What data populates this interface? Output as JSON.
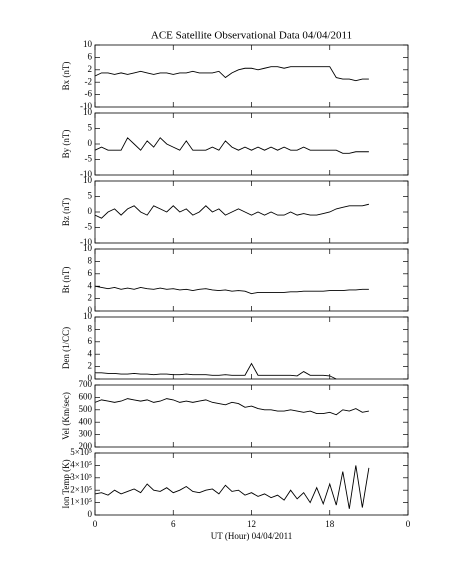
{
  "chart_data": [
    {
      "type": "line",
      "title": "ACE Satellite Observational Data   04/04/2011",
      "ylabel": "Bx (nT)",
      "color": "#000000",
      "x": [
        0,
        0.5,
        1,
        1.5,
        2,
        2.5,
        3,
        3.5,
        4,
        4.5,
        5,
        5.5,
        6,
        6.5,
        7,
        7.5,
        8,
        8.5,
        9,
        9.5,
        10,
        10.5,
        11,
        11.5,
        12,
        12.5,
        13,
        13.5,
        14,
        14.5,
        15,
        15.5,
        16,
        16.5,
        17,
        17.5,
        18,
        18.5,
        19,
        19.5,
        20,
        20.5,
        21
      ],
      "values": [
        0,
        1,
        1,
        0.5,
        1,
        0.5,
        1,
        1.5,
        1,
        0.5,
        1,
        1,
        0.5,
        1,
        1,
        1.5,
        1,
        1,
        1,
        1.5,
        -0.5,
        1,
        2,
        2.5,
        2.5,
        2,
        2.5,
        3,
        3,
        2.5,
        3,
        3,
        3,
        3,
        3,
        3,
        3,
        -0.5,
        -1,
        -1,
        -1.5,
        -1,
        -1
      ],
      "xlim": [
        0,
        24
      ],
      "xticks": [
        0,
        6,
        12,
        18,
        24
      ],
      "ylim": [
        -10,
        10
      ],
      "yticks": [
        -10,
        -6,
        -2,
        2,
        6,
        10
      ]
    },
    {
      "type": "line",
      "ylabel": "By (nT)",
      "color": "#000000",
      "x": [
        0,
        0.5,
        1,
        1.5,
        2,
        2.5,
        3,
        3.5,
        4,
        4.5,
        5,
        5.5,
        6,
        6.5,
        7,
        7.5,
        8,
        8.5,
        9,
        9.5,
        10,
        10.5,
        11,
        11.5,
        12,
        12.5,
        13,
        13.5,
        14,
        14.5,
        15,
        15.5,
        16,
        16.5,
        17,
        17.5,
        18,
        18.5,
        19,
        19.5,
        20,
        20.5,
        21
      ],
      "values": [
        -2,
        -1,
        -2,
        -2,
        -2,
        2,
        0,
        -2,
        1,
        -1,
        2,
        0,
        -1,
        -2,
        1,
        -2,
        -2,
        -2,
        -1,
        -2,
        1,
        -1,
        -2,
        -1,
        -2,
        -1,
        -2,
        -1,
        -2,
        -1,
        -2,
        -2,
        -1,
        -2,
        -2,
        -2,
        -2,
        -2,
        -3,
        -3,
        -2.5,
        -2.5,
        -2.5
      ],
      "xlim": [
        0,
        24
      ],
      "xticks": [
        0,
        6,
        12,
        18,
        24
      ],
      "ylim": [
        -10,
        10
      ],
      "yticks": [
        -10,
        -5,
        0,
        5,
        10
      ]
    },
    {
      "type": "line",
      "ylabel": "Bz (nT)",
      "color": "#000000",
      "x": [
        0,
        0.5,
        1,
        1.5,
        2,
        2.5,
        3,
        3.5,
        4,
        4.5,
        5,
        5.5,
        6,
        6.5,
        7,
        7.5,
        8,
        8.5,
        9,
        9.5,
        10,
        10.5,
        11,
        11.5,
        12,
        12.5,
        13,
        13.5,
        14,
        14.5,
        15,
        15.5,
        16,
        16.5,
        17,
        17.5,
        18,
        18.5,
        19,
        19.5,
        20,
        20.5,
        21
      ],
      "values": [
        -1,
        -2,
        0,
        1,
        -1,
        1,
        2,
        0,
        -1,
        2,
        1,
        0,
        2,
        0,
        1,
        -1,
        0,
        2,
        0,
        1,
        -1,
        0,
        1,
        0,
        -1,
        0,
        -1,
        0,
        -1,
        -1,
        0,
        -1,
        -0.5,
        -1,
        -1,
        -0.5,
        0,
        1,
        1.5,
        2,
        2,
        2,
        2.5
      ],
      "xlim": [
        0,
        24
      ],
      "xticks": [
        0,
        6,
        12,
        18,
        24
      ],
      "ylim": [
        -10,
        10
      ],
      "yticks": [
        -10,
        -5,
        0,
        5,
        10
      ]
    },
    {
      "type": "line",
      "ylabel": "Bt (nT)",
      "color": "#000000",
      "x": [
        0,
        0.5,
        1,
        1.5,
        2,
        2.5,
        3,
        3.5,
        4,
        4.5,
        5,
        5.5,
        6,
        6.5,
        7,
        7.5,
        8,
        8.5,
        9,
        9.5,
        10,
        10.5,
        11,
        11.5,
        12,
        12.5,
        13,
        13.5,
        14,
        14.5,
        15,
        15.5,
        16,
        16.5,
        17,
        17.5,
        18,
        18.5,
        19,
        19.5,
        20,
        20.5,
        21
      ],
      "values": [
        4,
        3.8,
        3.6,
        3.8,
        3.5,
        3.7,
        3.5,
        3.8,
        3.6,
        3.5,
        3.7,
        3.5,
        3.6,
        3.4,
        3.5,
        3.3,
        3.5,
        3.6,
        3.4,
        3.3,
        3.4,
        3.2,
        3.3,
        3.2,
        2.8,
        3,
        3,
        3,
        3,
        3,
        3.1,
        3.1,
        3.2,
        3.2,
        3.2,
        3.2,
        3.3,
        3.3,
        3.3,
        3.4,
        3.4,
        3.5,
        3.5
      ],
      "xlim": [
        0,
        24
      ],
      "xticks": [
        0,
        6,
        12,
        18,
        24
      ],
      "ylim": [
        0,
        10
      ],
      "yticks": [
        0,
        2,
        4,
        6,
        8,
        10
      ]
    },
    {
      "type": "line",
      "ylabel": "Den (1/CC)",
      "color": "#000000",
      "x": [
        0,
        0.5,
        1,
        1.5,
        2,
        2.5,
        3,
        3.5,
        4,
        4.5,
        5,
        5.5,
        6,
        6.5,
        7,
        7.5,
        8,
        8.5,
        9,
        9.5,
        10,
        10.5,
        11,
        11.5,
        12,
        12.5,
        13,
        13.5,
        14,
        14.5,
        15,
        15.5,
        16,
        16.5,
        17,
        17.5,
        18,
        18.5,
        19,
        19.5,
        20,
        20.5,
        21
      ],
      "values": [
        1,
        1,
        0.9,
        0.9,
        0.8,
        0.8,
        0.9,
        0.8,
        0.8,
        0.7,
        0.8,
        0.8,
        0.7,
        0.7,
        0.8,
        0.7,
        0.7,
        0.7,
        0.6,
        0.6,
        0.7,
        0.6,
        0.6,
        0.6,
        2.5,
        0.6,
        0.6,
        0.6,
        0.6,
        0.6,
        0.6,
        0.5,
        1.2,
        0.6,
        0.6,
        0.6,
        0.5,
        0,
        null,
        null,
        null,
        null,
        null
      ],
      "xlim": [
        0,
        24
      ],
      "xticks": [
        0,
        6,
        12,
        18,
        24
      ],
      "ylim": [
        0,
        10
      ],
      "yticks": [
        0,
        2,
        4,
        6,
        8,
        10
      ]
    },
    {
      "type": "line",
      "ylabel": "Vel (Km/sec)",
      "color": "#000000",
      "x": [
        0,
        0.5,
        1,
        1.5,
        2,
        2.5,
        3,
        3.5,
        4,
        4.5,
        5,
        5.5,
        6,
        6.5,
        7,
        7.5,
        8,
        8.5,
        9,
        9.5,
        10,
        10.5,
        11,
        11.5,
        12,
        12.5,
        13,
        13.5,
        14,
        14.5,
        15,
        15.5,
        16,
        16.5,
        17,
        17.5,
        18,
        18.5,
        19,
        19.5,
        20,
        20.5,
        21
      ],
      "values": [
        560,
        580,
        570,
        560,
        570,
        590,
        580,
        570,
        580,
        560,
        570,
        590,
        580,
        560,
        570,
        560,
        570,
        580,
        560,
        550,
        540,
        560,
        550,
        520,
        530,
        510,
        500,
        500,
        490,
        490,
        500,
        490,
        480,
        490,
        470,
        470,
        480,
        460,
        500,
        490,
        510,
        480,
        490
      ],
      "xlim": [
        0,
        24
      ],
      "xticks": [
        0,
        6,
        12,
        18,
        24
      ],
      "ylim": [
        200,
        700
      ],
      "yticks": [
        200,
        300,
        400,
        500,
        600,
        700
      ]
    },
    {
      "type": "line",
      "ylabel": "Ion Temp (K)",
      "xlabel": "UT (Hour)   04/04/2011",
      "color": "#000000",
      "x": [
        0,
        0.5,
        1,
        1.5,
        2,
        2.5,
        3,
        3.5,
        4,
        4.5,
        5,
        5.5,
        6,
        6.5,
        7,
        7.5,
        8,
        8.5,
        9,
        9.5,
        10,
        10.5,
        11,
        11.5,
        12,
        12.5,
        13,
        13.5,
        14,
        14.5,
        15,
        15.5,
        16,
        16.5,
        17,
        17.5,
        18,
        18.5,
        19,
        19.5,
        20,
        20.5,
        21
      ],
      "values": [
        170000,
        180000,
        160000,
        200000,
        170000,
        190000,
        210000,
        180000,
        250000,
        200000,
        190000,
        220000,
        180000,
        200000,
        230000,
        190000,
        180000,
        200000,
        210000,
        170000,
        240000,
        190000,
        200000,
        160000,
        180000,
        150000,
        170000,
        140000,
        160000,
        120000,
        200000,
        130000,
        180000,
        100000,
        220000,
        90000,
        250000,
        80000,
        350000,
        50000,
        400000,
        60000,
        380000
      ],
      "xlim": [
        0,
        24
      ],
      "xticks": [
        0,
        6,
        12,
        18,
        {
          "value": 24,
          "label": "0"
        }
      ],
      "ylim": [
        0,
        500000
      ],
      "yticks": [
        0,
        {
          "value": 100000,
          "label": "1×10⁵"
        },
        {
          "value": 200000,
          "label": "2×10⁵"
        },
        {
          "value": 300000,
          "label": "3×10⁵"
        },
        {
          "value": 400000,
          "label": "4×10⁵"
        },
        {
          "value": 500000,
          "label": "5×10⁵"
        }
      ]
    }
  ]
}
